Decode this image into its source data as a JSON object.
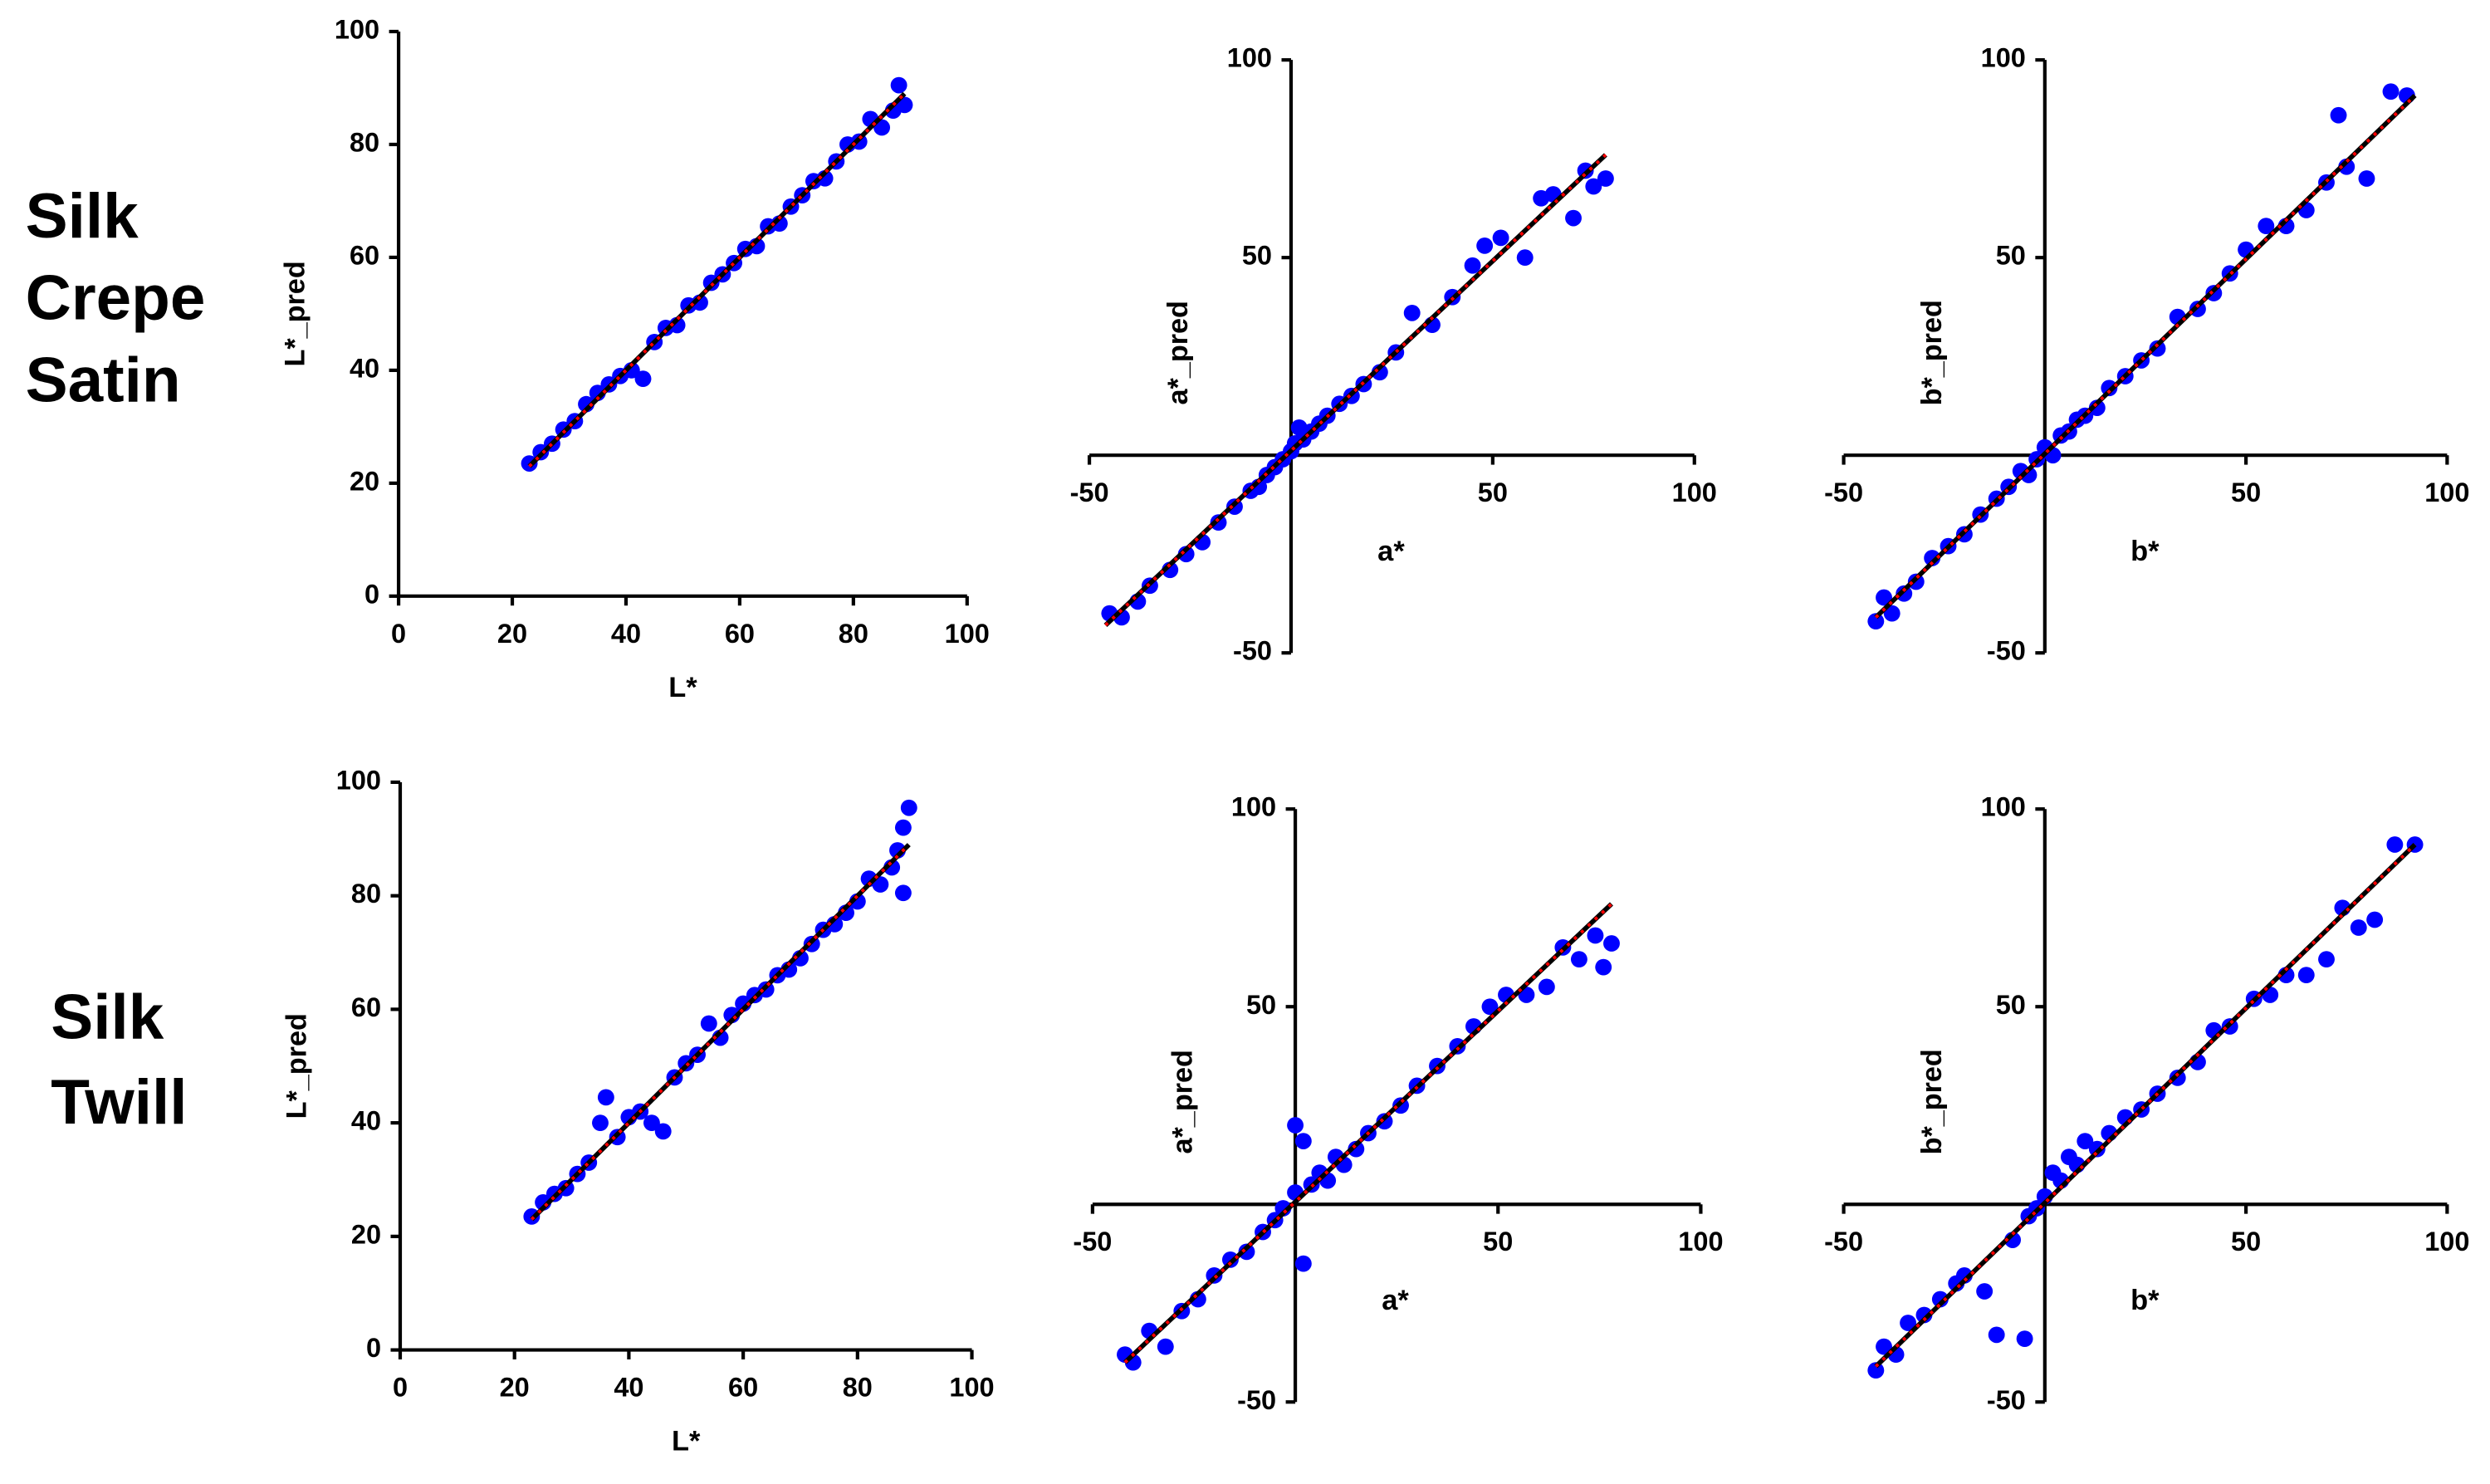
{
  "row_labels": [
    [
      "Silk",
      "Crepe",
      "Satin"
    ],
    [
      "Silk",
      "Twill"
    ]
  ],
  "chart_data": [
    {
      "type": "scatter",
      "xlabel": "L*",
      "ylabel": "L*_pred",
      "axes_position": "edge",
      "color": "#0000ff",
      "xlim": [
        0,
        100
      ],
      "ylim": [
        0,
        100
      ],
      "xticks": [
        0,
        20,
        40,
        60,
        80,
        100
      ],
      "yticks": [
        0,
        20,
        40,
        60,
        80,
        100
      ],
      "x": [
        23,
        25,
        27,
        29,
        31,
        33,
        35,
        37,
        39,
        41,
        43,
        45,
        47,
        49,
        51,
        53,
        55,
        57,
        59,
        61,
        63,
        65,
        67,
        69,
        71,
        73,
        75,
        77,
        79,
        81,
        83,
        85,
        87,
        88,
        89
      ],
      "y": [
        23.5,
        25.5,
        27,
        29.5,
        31,
        34,
        36,
        37.5,
        39,
        40,
        38.5,
        45,
        47.5,
        48,
        51.5,
        52,
        55.5,
        57,
        59,
        61.5,
        62,
        65.5,
        66,
        69,
        71,
        73.5,
        74,
        77,
        80,
        80.5,
        84.5,
        83,
        86,
        90.5,
        87
      ],
      "lines": [
        {
          "color": "#000000",
          "style": "solid",
          "x": [
            23,
            89
          ],
          "y": [
            23,
            89
          ]
        },
        {
          "color": "#ff0000",
          "style": "dotted",
          "x": [
            23,
            89
          ],
          "y": [
            23,
            89
          ]
        }
      ]
    },
    {
      "type": "scatter",
      "xlabel": "a*",
      "ylabel": "a*_pred",
      "axes_position": "zero",
      "color": "#0000ff",
      "xlim": [
        -50,
        100
      ],
      "ylim": [
        -50,
        100
      ],
      "xticks": [
        -50,
        50,
        100
      ],
      "yticks": [
        -50,
        50,
        100
      ],
      "x": [
        -45,
        -42,
        -38,
        -35,
        -30,
        -26,
        -22,
        -18,
        -14,
        -10,
        -8,
        -6,
        -4,
        -2,
        0,
        1,
        2,
        3,
        5,
        7,
        9,
        12,
        15,
        18,
        22,
        26,
        30,
        35,
        40,
        45,
        48,
        52,
        58,
        62,
        65,
        70,
        73,
        75,
        78
      ],
      "y": [
        -40,
        -41,
        -37,
        -33,
        -29,
        -25,
        -22,
        -17,
        -13,
        -9,
        -8,
        -5,
        -3,
        -1,
        1,
        3,
        7,
        4,
        6,
        8,
        10,
        13,
        15,
        18,
        21,
        26,
        36,
        33,
        40,
        48,
        53,
        55,
        50,
        65,
        66,
        60,
        72,
        68,
        70
      ],
      "lines": [
        {
          "color": "#000000",
          "style": "solid",
          "x": [
            -46,
            78
          ],
          "y": [
            -43,
            76
          ]
        },
        {
          "color": "#ff0000",
          "style": "dotted",
          "x": [
            -46,
            78
          ],
          "y": [
            -43,
            76
          ]
        }
      ]
    },
    {
      "type": "scatter",
      "xlabel": "b*",
      "ylabel": "b*_pred",
      "axes_position": "zero",
      "color": "#0000ff",
      "xlim": [
        -50,
        100
      ],
      "ylim": [
        -50,
        100
      ],
      "xticks": [
        -50,
        50,
        100
      ],
      "yticks": [
        -50,
        50,
        100
      ],
      "x": [
        -42,
        -40,
        -38,
        -35,
        -32,
        -28,
        -24,
        -20,
        -16,
        -12,
        -9,
        -6,
        -4,
        -2,
        0,
        2,
        4,
        6,
        8,
        10,
        13,
        16,
        20,
        24,
        28,
        33,
        38,
        42,
        46,
        50,
        55,
        60,
        65,
        70,
        73,
        75,
        80,
        86,
        90
      ],
      "y": [
        -42,
        -36,
        -40,
        -35,
        -32,
        -26,
        -23,
        -20,
        -15,
        -11,
        -8,
        -4,
        -5,
        -1,
        2,
        0,
        5,
        6,
        9,
        10,
        12,
        17,
        20,
        24,
        27,
        35,
        37,
        41,
        46,
        52,
        58,
        58,
        62,
        69,
        86,
        73,
        70,
        92,
        91
      ],
      "lines": [
        {
          "color": "#000000",
          "style": "solid",
          "x": [
            -42,
            92
          ],
          "y": [
            -41,
            91
          ]
        },
        {
          "color": "#ff0000",
          "style": "dotted",
          "x": [
            -42,
            92
          ],
          "y": [
            -41,
            91
          ]
        }
      ]
    },
    {
      "type": "scatter",
      "xlabel": "L*",
      "ylabel": "L*_pred",
      "axes_position": "edge",
      "color": "#0000ff",
      "xlim": [
        0,
        100
      ],
      "ylim": [
        0,
        100
      ],
      "xticks": [
        0,
        20,
        40,
        60,
        80,
        100
      ],
      "yticks": [
        0,
        20,
        40,
        60,
        80,
        100
      ],
      "x": [
        23,
        25,
        27,
        29,
        31,
        33,
        35,
        36,
        38,
        40,
        42,
        44,
        46,
        48,
        50,
        52,
        54,
        56,
        58,
        60,
        62,
        64,
        66,
        68,
        70,
        72,
        74,
        76,
        78,
        80,
        82,
        84,
        86,
        88,
        89,
        88,
        87
      ],
      "y": [
        23.5,
        26,
        27.5,
        28.5,
        31,
        33,
        40,
        44.5,
        37.5,
        41,
        42,
        40,
        38.5,
        48,
        50.5,
        52,
        57.5,
        55,
        59,
        61,
        62.5,
        63.5,
        66,
        67,
        69,
        71.5,
        74,
        75,
        77,
        79,
        83,
        82,
        85,
        80.5,
        95.5,
        92,
        88
      ],
      "lines": [
        {
          "color": "#000000",
          "style": "solid",
          "x": [
            23,
            89
          ],
          "y": [
            23,
            89
          ]
        },
        {
          "color": "#ff0000",
          "style": "dotted",
          "x": [
            23,
            89
          ],
          "y": [
            23,
            89
          ]
        }
      ]
    },
    {
      "type": "scatter",
      "xlabel": "a*",
      "ylabel": "a*_pred",
      "axes_position": "zero",
      "color": "#0000ff",
      "xlim": [
        -50,
        100
      ],
      "ylim": [
        -50,
        100
      ],
      "xticks": [
        -50,
        50,
        100
      ],
      "yticks": [
        -50,
        50,
        100
      ],
      "x": [
        -42,
        -40,
        -36,
        -32,
        -28,
        -24,
        -20,
        -16,
        -12,
        -8,
        -5,
        -3,
        0,
        0,
        2,
        2,
        4,
        6,
        8,
        10,
        12,
        15,
        18,
        22,
        26,
        30,
        35,
        40,
        44,
        48,
        52,
        57,
        62,
        66,
        70,
        74,
        76,
        78
      ],
      "y": [
        -38,
        -40,
        -32,
        -36,
        -27,
        -24,
        -18,
        -14,
        -12,
        -7,
        -4,
        -1,
        20,
        3,
        16,
        -15,
        5,
        8,
        6,
        12,
        10,
        14,
        18,
        21,
        25,
        30,
        35,
        40,
        45,
        50,
        53,
        53,
        55,
        65,
        62,
        68,
        60,
        66
      ],
      "lines": [
        {
          "color": "#000000",
          "style": "solid",
          "x": [
            -42,
            78
          ],
          "y": [
            -40,
            76
          ]
        },
        {
          "color": "#ff0000",
          "style": "dotted",
          "x": [
            -42,
            78
          ],
          "y": [
            -40,
            76
          ]
        }
      ]
    },
    {
      "type": "scatter",
      "xlabel": "b*",
      "ylabel": "b*_pred",
      "axes_position": "zero",
      "color": "#0000ff",
      "xlim": [
        -50,
        100
      ],
      "ylim": [
        -50,
        100
      ],
      "xticks": [
        -50,
        50,
        100
      ],
      "yticks": [
        -50,
        50,
        100
      ],
      "x": [
        -42,
        -40,
        -37,
        -34,
        -30,
        -26,
        -22,
        -20,
        -15,
        -12,
        -8,
        -5,
        -4,
        -2,
        0,
        2,
        4,
        6,
        8,
        10,
        13,
        16,
        20,
        24,
        28,
        33,
        38,
        42,
        46,
        52,
        56,
        60,
        65,
        70,
        74,
        78,
        82,
        87,
        92
      ],
      "y": [
        -42,
        -36,
        -38,
        -30,
        -28,
        -24,
        -20,
        -18,
        -22,
        -33,
        -9,
        -34,
        -3,
        -1,
        2,
        8,
        6,
        12,
        10,
        16,
        14,
        18,
        22,
        24,
        28,
        32,
        36,
        44,
        45,
        52,
        53,
        58,
        58,
        62,
        75,
        70,
        72,
        91,
        91
      ],
      "lines": [
        {
          "color": "#000000",
          "style": "solid",
          "x": [
            -42,
            92
          ],
          "y": [
            -41,
            91
          ]
        },
        {
          "color": "#ff0000",
          "style": "dotted",
          "x": [
            -42,
            92
          ],
          "y": [
            -41,
            91
          ]
        }
      ]
    }
  ]
}
